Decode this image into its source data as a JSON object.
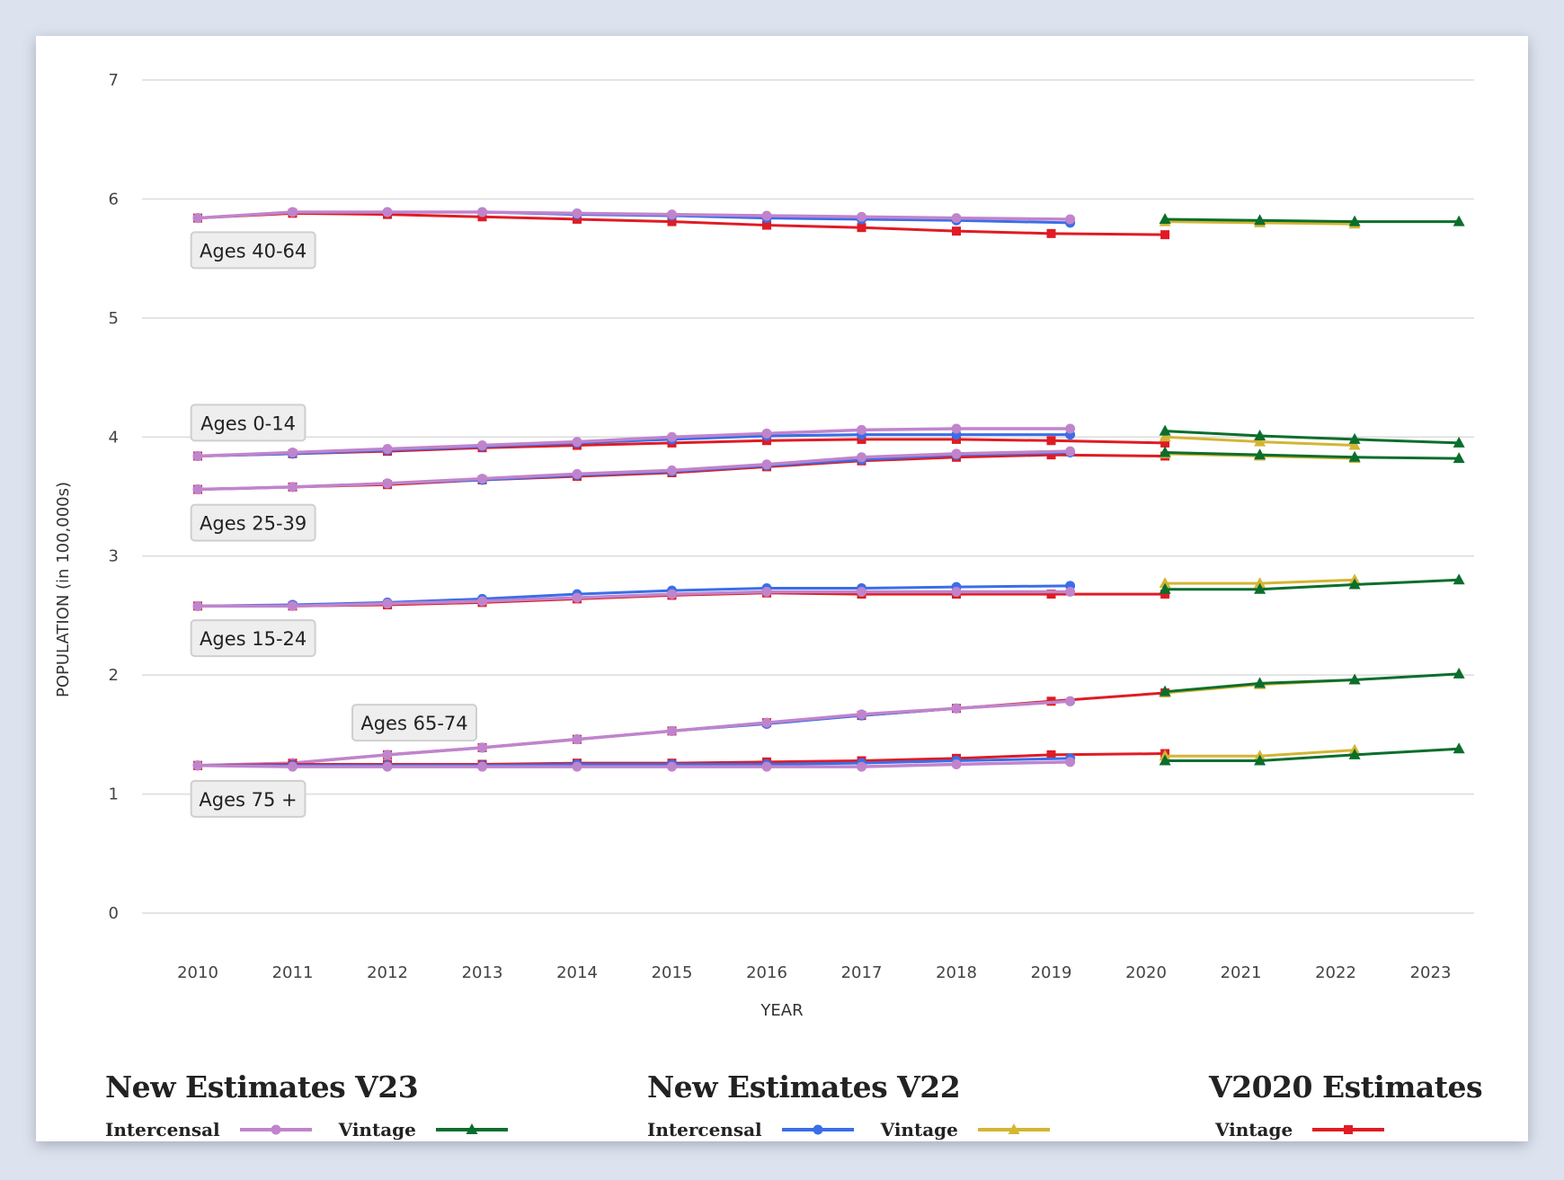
{
  "chart_data": {
    "type": "line",
    "title": "",
    "xlabel": "YEAR",
    "ylabel": "POPULATION (in 100,000s)",
    "ylim": [
      0,
      7
    ],
    "yticks": [
      "0",
      "1",
      "2",
      "3",
      "4",
      "5",
      "6",
      "7"
    ],
    "xticks": [
      "2010",
      "2011",
      "2012",
      "2013",
      "2014",
      "2015",
      "2016",
      "2017",
      "2018",
      "2019",
      "2020",
      "2021",
      "2022",
      "2023"
    ],
    "grid": true,
    "legend_position": "bottom",
    "legend_groups": [
      {
        "title": "New Estimates V23",
        "items": [
          {
            "label": "Intercensal",
            "series": "v23_intercensal"
          },
          {
            "label": "Vintage",
            "series": "v23_vintage"
          }
        ]
      },
      {
        "title": "New Estimates V22",
        "items": [
          {
            "label": "Intercensal",
            "series": "v22_intercensal"
          },
          {
            "label": "Vintage",
            "series": "v22_vintage"
          }
        ]
      },
      {
        "title": "V2020 Estimates",
        "items": [
          {
            "label": "Vintage",
            "series": "v2020_vintage"
          }
        ]
      }
    ],
    "series_styles": {
      "v23_intercensal": {
        "color": "#c084cc",
        "marker": "circle"
      },
      "v23_vintage": {
        "color": "#0b6e2c",
        "marker": "triangle"
      },
      "v22_intercensal": {
        "color": "#3a6ee8",
        "marker": "circle"
      },
      "v22_vintage": {
        "color": "#d4b534",
        "marker": "triangle"
      },
      "v2020_vintage": {
        "color": "#e01b24",
        "marker": "square"
      }
    },
    "annotations": [
      {
        "text": "Ages 40-64",
        "x": 2010.3,
        "y": 5.57
      },
      {
        "text": "Ages 0-14",
        "x": 2010.3,
        "y": 4.12
      },
      {
        "text": "Ages 25-39",
        "x": 2010.3,
        "y": 3.28
      },
      {
        "text": "Ages 15-24",
        "x": 2010.3,
        "y": 2.31
      },
      {
        "text": "Ages 65-74",
        "x": 2012.0,
        "y": 1.6
      },
      {
        "text": "Ages 75 +",
        "x": 2010.3,
        "y": 0.96
      }
    ],
    "groups": [
      {
        "name": "Ages 40-64",
        "series": [
          {
            "name": "v2020_vintage",
            "x": [
              2010,
              2011,
              2012,
              2013,
              2014,
              2015,
              2016,
              2017,
              2018,
              2019,
              2020.2
            ],
            "values": [
              5.84,
              5.88,
              5.87,
              5.85,
              5.83,
              5.81,
              5.78,
              5.76,
              5.73,
              5.71,
              5.7
            ]
          },
          {
            "name": "v22_intercensal",
            "x": [
              2010,
              2011,
              2012,
              2013,
              2014,
              2015,
              2016,
              2017,
              2018,
              2019.2
            ],
            "values": [
              5.84,
              5.89,
              5.89,
              5.89,
              5.87,
              5.86,
              5.84,
              5.83,
              5.82,
              5.8
            ]
          },
          {
            "name": "v23_intercensal",
            "x": [
              2010,
              2011,
              2012,
              2013,
              2014,
              2015,
              2016,
              2017,
              2018,
              2019.2
            ],
            "values": [
              5.84,
              5.89,
              5.89,
              5.89,
              5.88,
              5.87,
              5.86,
              5.85,
              5.84,
              5.83
            ]
          },
          {
            "name": "v22_vintage",
            "x": [
              2020.2,
              2021.2,
              2022.2
            ],
            "values": [
              5.81,
              5.8,
              5.79
            ]
          },
          {
            "name": "v23_vintage",
            "x": [
              2020.2,
              2021.2,
              2022.2,
              2023.3
            ],
            "values": [
              5.83,
              5.82,
              5.81,
              5.81
            ]
          }
        ]
      },
      {
        "name": "Ages 0-14",
        "series": [
          {
            "name": "v2020_vintage",
            "x": [
              2010,
              2011,
              2012,
              2013,
              2014,
              2015,
              2016,
              2017,
              2018,
              2019,
              2020.2
            ],
            "values": [
              3.84,
              3.86,
              3.88,
              3.91,
              3.93,
              3.95,
              3.97,
              3.98,
              3.98,
              3.97,
              3.95
            ]
          },
          {
            "name": "v22_intercensal",
            "x": [
              2010,
              2011,
              2012,
              2013,
              2014,
              2015,
              2016,
              2017,
              2018,
              2019.2
            ],
            "values": [
              3.84,
              3.86,
              3.89,
              3.92,
              3.95,
              3.98,
              4.01,
              4.02,
              4.02,
              4.02
            ]
          },
          {
            "name": "v23_intercensal",
            "x": [
              2010,
              2011,
              2012,
              2013,
              2014,
              2015,
              2016,
              2017,
              2018,
              2019.2
            ],
            "values": [
              3.84,
              3.87,
              3.9,
              3.93,
              3.96,
              4.0,
              4.03,
              4.06,
              4.07,
              4.07
            ]
          },
          {
            "name": "v22_vintage",
            "x": [
              2020.2,
              2021.2,
              2022.2
            ],
            "values": [
              4.0,
              3.96,
              3.93
            ]
          },
          {
            "name": "v23_vintage",
            "x": [
              2020.2,
              2021.2,
              2022.2,
              2023.3
            ],
            "values": [
              4.05,
              4.01,
              3.98,
              3.95
            ]
          }
        ]
      },
      {
        "name": "Ages 25-39",
        "series": [
          {
            "name": "v2020_vintage",
            "x": [
              2010,
              2011,
              2012,
              2013,
              2014,
              2015,
              2016,
              2017,
              2018,
              2019,
              2020.2
            ],
            "values": [
              3.56,
              3.58,
              3.6,
              3.64,
              3.67,
              3.7,
              3.75,
              3.8,
              3.83,
              3.85,
              3.84
            ]
          },
          {
            "name": "v22_intercensal",
            "x": [
              2010,
              2011,
              2012,
              2013,
              2014,
              2015,
              2016,
              2017,
              2018,
              2019.2
            ],
            "values": [
              3.56,
              3.58,
              3.61,
              3.64,
              3.68,
              3.71,
              3.76,
              3.81,
              3.85,
              3.87
            ]
          },
          {
            "name": "v23_intercensal",
            "x": [
              2010,
              2011,
              2012,
              2013,
              2014,
              2015,
              2016,
              2017,
              2018,
              2019.2
            ],
            "values": [
              3.56,
              3.58,
              3.61,
              3.65,
              3.69,
              3.72,
              3.77,
              3.83,
              3.86,
              3.88
            ]
          },
          {
            "name": "v22_vintage",
            "x": [
              2020.2,
              2021.2,
              2022.2
            ],
            "values": [
              3.86,
              3.84,
              3.82
            ]
          },
          {
            "name": "v23_vintage",
            "x": [
              2020.2,
              2021.2,
              2022.2,
              2023.3
            ],
            "values": [
              3.87,
              3.85,
              3.83,
              3.82
            ]
          }
        ]
      },
      {
        "name": "Ages 15-24",
        "series": [
          {
            "name": "v2020_vintage",
            "x": [
              2010,
              2011,
              2012,
              2013,
              2014,
              2015,
              2016,
              2017,
              2018,
              2019,
              2020.2
            ],
            "values": [
              2.58,
              2.58,
              2.59,
              2.61,
              2.64,
              2.67,
              2.69,
              2.68,
              2.68,
              2.68,
              2.68
            ]
          },
          {
            "name": "v22_intercensal",
            "x": [
              2010,
              2011,
              2012,
              2013,
              2014,
              2015,
              2016,
              2017,
              2018,
              2019.2
            ],
            "values": [
              2.58,
              2.59,
              2.61,
              2.64,
              2.68,
              2.71,
              2.73,
              2.73,
              2.74,
              2.75
            ]
          },
          {
            "name": "v23_intercensal",
            "x": [
              2010,
              2011,
              2012,
              2013,
              2014,
              2015,
              2016,
              2017,
              2018,
              2019.2
            ],
            "values": [
              2.58,
              2.58,
              2.6,
              2.62,
              2.65,
              2.68,
              2.7,
              2.7,
              2.7,
              2.7
            ]
          },
          {
            "name": "v22_vintage",
            "x": [
              2020.2,
              2021.2,
              2022.2
            ],
            "values": [
              2.77,
              2.77,
              2.8
            ]
          },
          {
            "name": "v23_vintage",
            "x": [
              2020.2,
              2021.2,
              2022.2,
              2023.3
            ],
            "values": [
              2.72,
              2.72,
              2.76,
              2.8
            ]
          }
        ]
      },
      {
        "name": "Ages 65-74",
        "series": [
          {
            "name": "v2020_vintage",
            "x": [
              2010,
              2011,
              2012,
              2013,
              2014,
              2015,
              2016,
              2017,
              2018,
              2019,
              2020.2
            ],
            "values": [
              1.24,
              1.26,
              1.33,
              1.39,
              1.46,
              1.53,
              1.6,
              1.66,
              1.72,
              1.78,
              1.85
            ]
          },
          {
            "name": "v22_intercensal",
            "x": [
              2010,
              2011,
              2012,
              2013,
              2014,
              2015,
              2016,
              2017,
              2018,
              2019.2
            ],
            "values": [
              1.24,
              1.26,
              1.33,
              1.39,
              1.46,
              1.53,
              1.59,
              1.66,
              1.72,
              1.78
            ]
          },
          {
            "name": "v23_intercensal",
            "x": [
              2010,
              2011,
              2012,
              2013,
              2014,
              2015,
              2016,
              2017,
              2018,
              2019.2
            ],
            "values": [
              1.24,
              1.26,
              1.33,
              1.39,
              1.46,
              1.53,
              1.6,
              1.67,
              1.72,
              1.78
            ]
          },
          {
            "name": "v22_vintage",
            "x": [
              2020.2,
              2021.2,
              2022.2
            ],
            "values": [
              1.85,
              1.92,
              1.96
            ]
          },
          {
            "name": "v23_vintage",
            "x": [
              2020.2,
              2021.2,
              2022.2,
              2023.3
            ],
            "values": [
              1.86,
              1.93,
              1.96,
              2.01
            ]
          }
        ]
      },
      {
        "name": "Ages 75 +",
        "series": [
          {
            "name": "v2020_vintage",
            "x": [
              2010,
              2011,
              2012,
              2013,
              2014,
              2015,
              2016,
              2017,
              2018,
              2019,
              2020.2
            ],
            "values": [
              1.24,
              1.25,
              1.25,
              1.25,
              1.26,
              1.26,
              1.27,
              1.28,
              1.3,
              1.33,
              1.34
            ]
          },
          {
            "name": "v22_intercensal",
            "x": [
              2010,
              2011,
              2012,
              2013,
              2014,
              2015,
              2016,
              2017,
              2018,
              2019.2
            ],
            "values": [
              1.24,
              1.24,
              1.24,
              1.24,
              1.25,
              1.25,
              1.25,
              1.26,
              1.28,
              1.3
            ]
          },
          {
            "name": "v23_intercensal",
            "x": [
              2010,
              2011,
              2012,
              2013,
              2014,
              2015,
              2016,
              2017,
              2018,
              2019.2
            ],
            "values": [
              1.24,
              1.23,
              1.23,
              1.23,
              1.23,
              1.23,
              1.23,
              1.23,
              1.25,
              1.27
            ]
          },
          {
            "name": "v22_vintage",
            "x": [
              2020.2,
              2021.2,
              2022.2
            ],
            "values": [
              1.32,
              1.32,
              1.37
            ]
          },
          {
            "name": "v23_vintage",
            "x": [
              2020.2,
              2021.2,
              2022.2,
              2023.3
            ],
            "values": [
              1.28,
              1.28,
              1.33,
              1.38
            ]
          }
        ]
      }
    ]
  }
}
